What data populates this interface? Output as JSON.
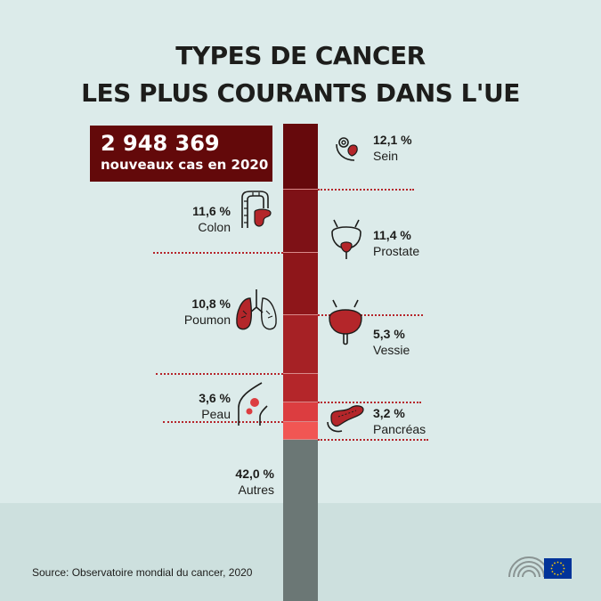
{
  "header": {
    "title_line1": "TYPES DE CANCER",
    "title_line2": "LES PLUS COURANTS DANS L'UE"
  },
  "total": {
    "number": "2 948 369",
    "label": "nouveaux cas en 2020"
  },
  "colors": {
    "background": "#dcebea",
    "other": "#6b7775",
    "leader": "#b5242a"
  },
  "chart_data": {
    "type": "bar",
    "orientation": "vertical-stacked",
    "title": "TYPES DE CANCER LES PLUS COURANTS DANS L'UE",
    "categories": [
      "Sein",
      "Colon",
      "Prostate",
      "Poumon",
      "Vessie",
      "Peau",
      "Pancréas",
      "Autres"
    ],
    "values": [
      12.1,
      11.6,
      11.4,
      10.8,
      5.3,
      3.6,
      3.2,
      42.0
    ],
    "value_labels": [
      "12,1 %",
      "11,6 %",
      "11,4 %",
      "10,8 %",
      "5,3 %",
      "3,6 %",
      "3,2 %",
      "42,0 %"
    ],
    "colors": [
      "#66090c",
      "#7e1116",
      "#8e161a",
      "#a62125",
      "#b4262a",
      "#dc3d40",
      "#f15653",
      "#6b7775"
    ],
    "side": [
      "right",
      "left",
      "right",
      "left",
      "right",
      "left",
      "right",
      "left"
    ],
    "icons": [
      "breast-icon",
      "colon-icon",
      "prostate-icon",
      "lung-icon",
      "bladder-icon",
      "skin-icon",
      "pancreas-icon",
      ""
    ],
    "unit": "%"
  },
  "source": "Source: Observatoire mondial du cancer, 2020",
  "logo": {
    "flag_color": "#003399",
    "star_color": "#ffcc00"
  }
}
